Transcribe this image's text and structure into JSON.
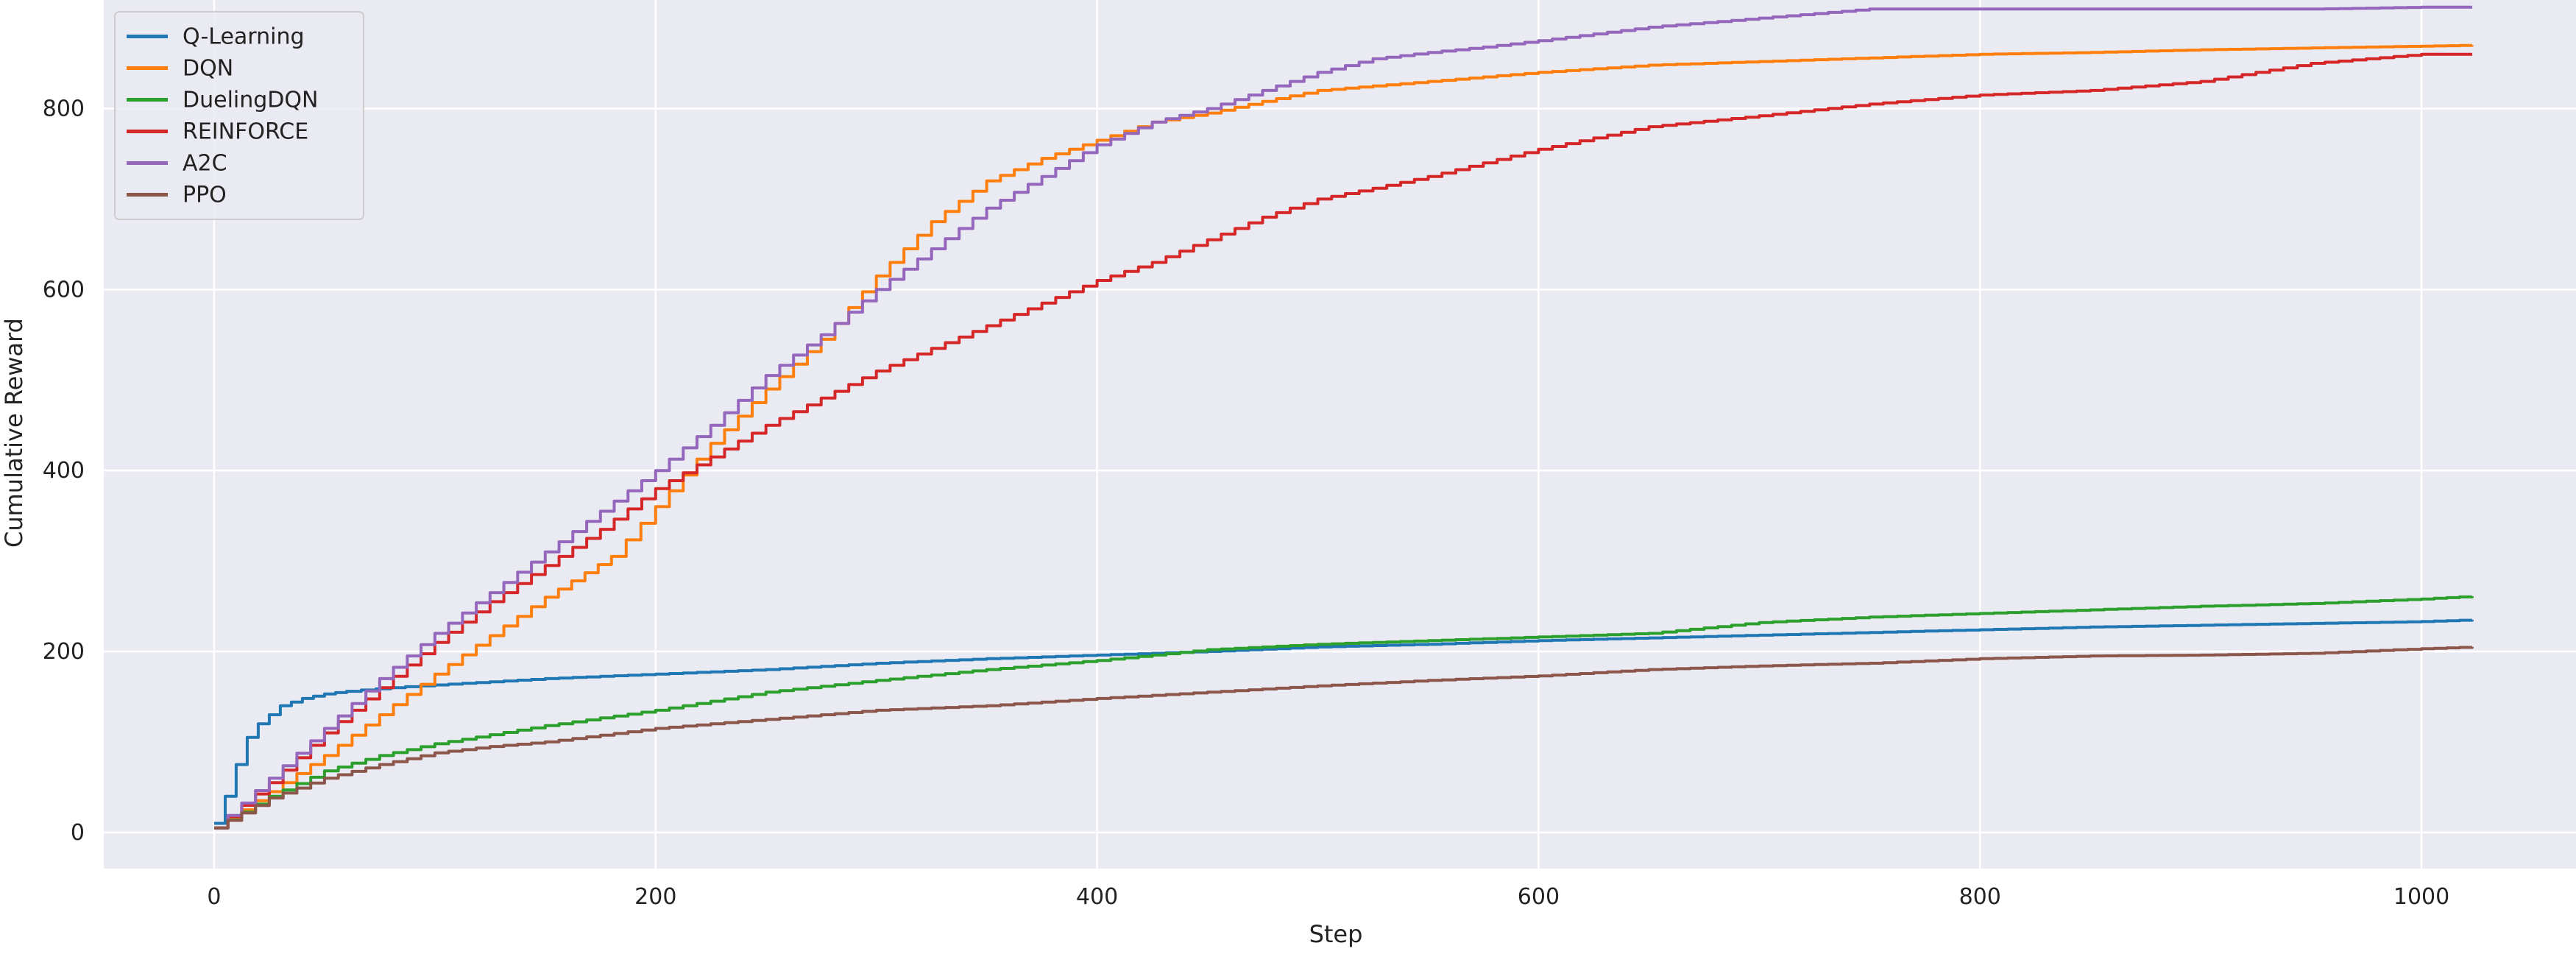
{
  "chart_data": {
    "type": "line",
    "title": "",
    "xlabel": "Step",
    "ylabel": "Cumulative Reward",
    "xlim": [
      -50,
      1070
    ],
    "ylim": [
      -40,
      920
    ],
    "xticks": [
      0,
      200,
      400,
      600,
      800,
      1000
    ],
    "yticks": [
      0,
      200,
      400,
      600,
      800
    ],
    "grid": true,
    "legend_position": "top-left",
    "background": "#eaeaf2",
    "series": [
      {
        "name": "Q-Learning",
        "color": "#1f77b4",
        "x": [
          0,
          5,
          10,
          15,
          20,
          30,
          40,
          50,
          60,
          80,
          100,
          150,
          200,
          250,
          300,
          350,
          400,
          450,
          500,
          550,
          600,
          650,
          700,
          750,
          800,
          850,
          900,
          950,
          1000,
          1023
        ],
        "y": [
          10,
          40,
          75,
          105,
          120,
          140,
          148,
          153,
          156,
          160,
          163,
          170,
          175,
          180,
          187,
          192,
          196,
          200,
          205,
          208,
          212,
          215,
          218,
          221,
          224,
          227,
          229,
          231,
          233,
          235
        ]
      },
      {
        "name": "DQN",
        "color": "#ff7f0e",
        "x": [
          0,
          25,
          50,
          100,
          150,
          180,
          200,
          225,
          250,
          275,
          300,
          325,
          350,
          375,
          400,
          425,
          450,
          475,
          500,
          550,
          600,
          650,
          700,
          750,
          800,
          850,
          900,
          950,
          1000,
          1023
        ],
        "y": [
          5,
          45,
          85,
          175,
          260,
          305,
          360,
          430,
          490,
          545,
          615,
          675,
          720,
          745,
          765,
          785,
          795,
          808,
          820,
          830,
          840,
          848,
          852,
          856,
          860,
          862,
          865,
          867,
          869,
          870
        ]
      },
      {
        "name": "DuelingDQN",
        "color": "#2ca02c",
        "x": [
          0,
          25,
          50,
          75,
          100,
          150,
          200,
          250,
          300,
          350,
          400,
          450,
          500,
          550,
          600,
          650,
          700,
          750,
          800,
          850,
          900,
          950,
          1000,
          1023
        ],
        "y": [
          5,
          40,
          68,
          85,
          98,
          118,
          135,
          155,
          168,
          180,
          190,
          202,
          208,
          212,
          216,
          220,
          232,
          238,
          242,
          246,
          250,
          253,
          258,
          261
        ]
      },
      {
        "name": "REINFORCE",
        "color": "#d62728",
        "x": [
          0,
          25,
          50,
          75,
          100,
          125,
          150,
          175,
          200,
          225,
          250,
          275,
          300,
          325,
          350,
          375,
          400,
          425,
          450,
          475,
          500,
          525,
          550,
          575,
          600,
          650,
          700,
          750,
          800,
          850,
          900,
          950,
          1000,
          1023
        ],
        "y": [
          5,
          55,
          110,
          160,
          210,
          255,
          295,
          335,
          380,
          415,
          450,
          480,
          510,
          535,
          560,
          585,
          610,
          630,
          655,
          680,
          700,
          712,
          725,
          740,
          755,
          780,
          792,
          805,
          815,
          820,
          830,
          850,
          860,
          860
        ]
      },
      {
        "name": "A2C",
        "color": "#9467bd",
        "x": [
          0,
          25,
          50,
          75,
          100,
          125,
          150,
          175,
          200,
          225,
          250,
          275,
          300,
          325,
          350,
          375,
          400,
          425,
          450,
          475,
          500,
          525,
          550,
          575,
          600,
          650,
          700,
          725,
          750,
          800,
          850,
          900,
          950,
          1000,
          1023
        ],
        "y": [
          5,
          60,
          115,
          170,
          220,
          265,
          310,
          355,
          400,
          450,
          505,
          550,
          600,
          645,
          690,
          725,
          760,
          785,
          800,
          820,
          840,
          855,
          862,
          868,
          875,
          890,
          900,
          905,
          910,
          910,
          910,
          910,
          910,
          912,
          912
        ]
      },
      {
        "name": "PPO",
        "color": "#8c564b",
        "x": [
          0,
          25,
          50,
          75,
          100,
          125,
          150,
          200,
          250,
          300,
          350,
          400,
          450,
          500,
          550,
          600,
          650,
          700,
          750,
          800,
          850,
          900,
          950,
          1000,
          1023
        ],
        "y": [
          5,
          38,
          60,
          75,
          88,
          95,
          100,
          115,
          125,
          135,
          140,
          148,
          155,
          162,
          168,
          173,
          180,
          184,
          187,
          192,
          195,
          196,
          198,
          203,
          205
        ]
      }
    ]
  }
}
